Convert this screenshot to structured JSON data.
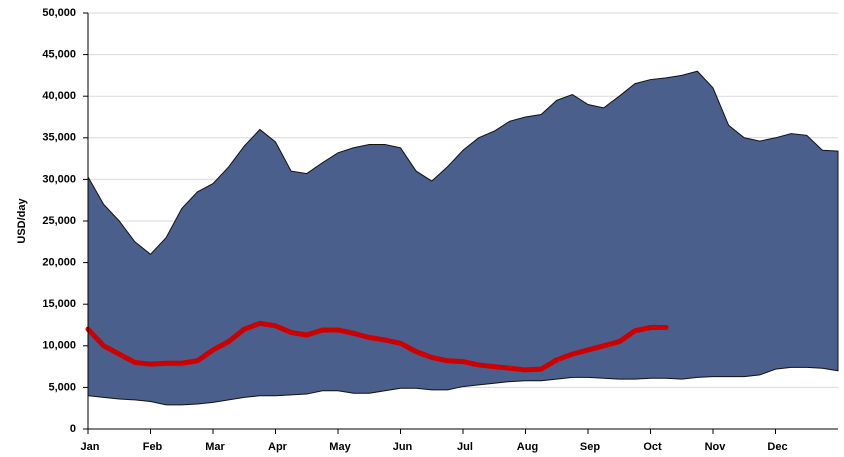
{
  "chart_data": {
    "type": "band-line",
    "y_label": "USD/day",
    "categories": [
      "Jan",
      null,
      null,
      null,
      "Feb",
      null,
      null,
      null,
      "Mar",
      null,
      null,
      null,
      "Apr",
      null,
      null,
      null,
      "May",
      null,
      null,
      null,
      "Jun",
      null,
      null,
      null,
      "Jul",
      null,
      null,
      null,
      "Aug",
      null,
      null,
      null,
      "Sep",
      null,
      null,
      null,
      "Oct",
      null,
      null,
      null,
      "Nov",
      null,
      null,
      null,
      "Dec",
      null,
      null,
      null,
      null
    ],
    "band": {
      "color": "#4a5f8c",
      "upper": [
        30300,
        27000,
        25000,
        22500,
        21000,
        23000,
        26500,
        28500,
        29500,
        31500,
        34000,
        36000,
        34500,
        31000,
        30700,
        32000,
        33200,
        33800,
        34200,
        34200,
        33800,
        31000,
        29800,
        31500,
        33500,
        35000,
        35800,
        37000,
        37500,
        37800,
        39500,
        40200,
        39000,
        38600,
        40000,
        41500,
        42000,
        42200,
        42500,
        43000,
        41000,
        36500,
        35000,
        34600,
        35000,
        35500,
        35300,
        33500,
        33400
      ],
      "lower": [
        4000,
        3800,
        3600,
        3500,
        3300,
        2900,
        2900,
        3000,
        3200,
        3500,
        3800,
        4000,
        4000,
        4100,
        4200,
        4600,
        4600,
        4300,
        4300,
        4600,
        4900,
        4900,
        4700,
        4700,
        5100,
        5300,
        5500,
        5700,
        5800,
        5800,
        6000,
        6200,
        6200,
        6100,
        6000,
        6000,
        6100,
        6100,
        6000,
        6200,
        6300,
        6300,
        6300,
        6500,
        7200,
        7400,
        7400,
        7300,
        7000
      ]
    },
    "series": [
      {
        "color": "#cc0000",
        "values": [
          12000,
          10000,
          9000,
          8000,
          7800,
          7900,
          7900,
          8200,
          9500,
          10500,
          12000,
          12700,
          12400,
          11600,
          11300,
          11900,
          11900,
          11500,
          11000,
          10700,
          10300,
          9300,
          8600,
          8200,
          8100,
          7700,
          7500,
          7300,
          7100,
          7200,
          8300,
          9000,
          9500,
          10000,
          10500,
          11800,
          12200,
          12200,
          null,
          null,
          null,
          null,
          null,
          null,
          null,
          null,
          null,
          null,
          null
        ]
      }
    ],
    "ylim": [
      0,
      50000
    ],
    "yticks": [
      0,
      {
        "value": 5000,
        "label": "5,000"
      },
      {
        "value": 10000,
        "label": "10,000"
      },
      {
        "value": 15000,
        "label": "15,000"
      },
      {
        "value": 20000,
        "label": "20,000"
      },
      {
        "value": 25000,
        "label": "25,000"
      },
      {
        "value": 30000,
        "label": "30,000"
      },
      {
        "value": 35000,
        "label": "35,000"
      },
      {
        "value": 40000,
        "label": "40,000"
      },
      {
        "value": 45000,
        "label": "45,000"
      },
      {
        "value": 50000,
        "label": "50,000"
      }
    ],
    "grid": true
  }
}
